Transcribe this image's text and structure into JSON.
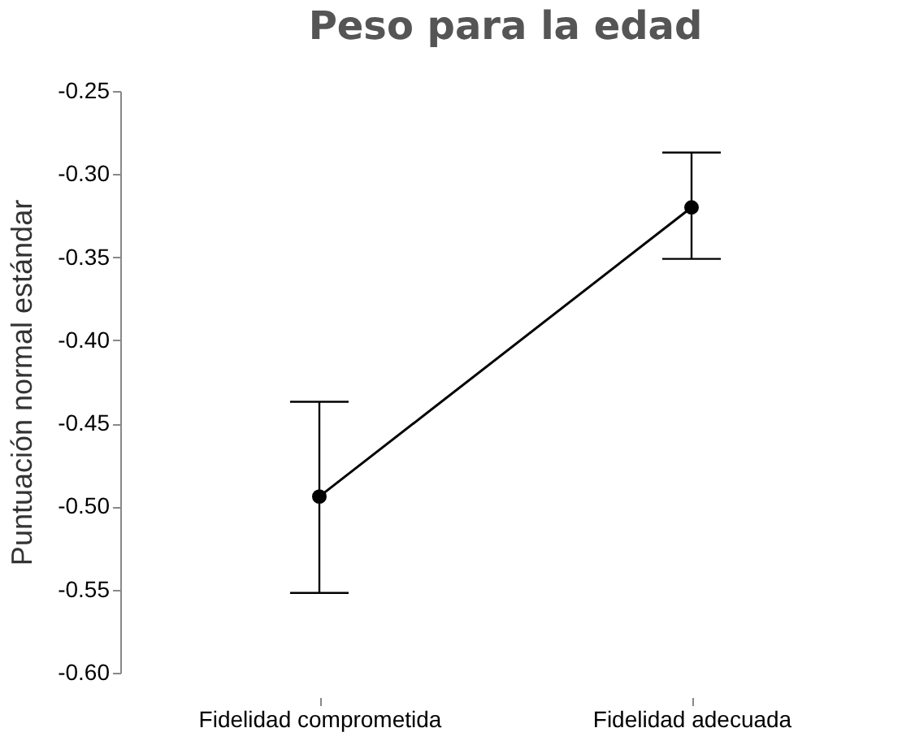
{
  "chart_data": {
    "type": "line",
    "title": "Peso para la edad",
    "ylabel": "Puntuación normal estándar",
    "categories": [
      "Fidelidad comprometida",
      "Fidelidad adecuada"
    ],
    "series": [
      {
        "color": "#000000",
        "values": [
          -0.494,
          -0.32
        ],
        "errors": [
          [
            -0.552,
            -0.437
          ],
          [
            -0.351,
            -0.287
          ]
        ]
      }
    ],
    "ylim": [
      -0.6,
      -0.25
    ],
    "yticks": [
      {
        "value": -0.6,
        "label": "-0.60"
      },
      {
        "value": -0.55,
        "label": "-0.55"
      },
      {
        "value": -0.5,
        "label": "-0.50"
      },
      {
        "value": -0.45,
        "label": "-0.45"
      },
      {
        "value": -0.4,
        "label": "-0.40"
      },
      {
        "value": -0.35,
        "label": "-0.35"
      },
      {
        "value": -0.3,
        "label": "-0.30"
      },
      {
        "value": -0.25,
        "label": "-0.25"
      }
    ],
    "marker": "circle",
    "line_style": "solid",
    "grid": false
  }
}
